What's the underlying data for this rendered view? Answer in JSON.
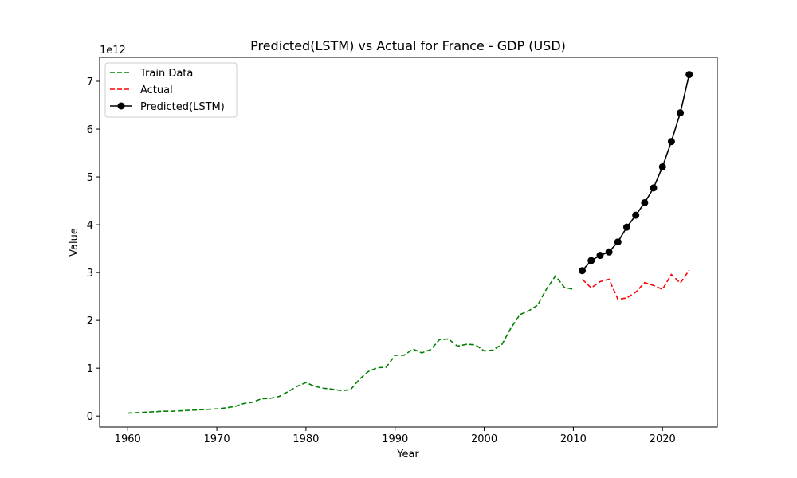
{
  "chart_data": {
    "type": "line",
    "title": "Predicted(LSTM) vs Actual for France - GDP (USD)",
    "xlabel": "Year",
    "ylabel": "Value",
    "y_offset_label": "1e12",
    "y_scale": 1000000000000.0,
    "xlim": [
      1956.85,
      2026.15
    ],
    "ylim": [
      -0.23,
      7.5
    ],
    "x_ticks": [
      1960,
      1970,
      1980,
      1990,
      2000,
      2010,
      2020
    ],
    "y_ticks": [
      0,
      1,
      2,
      3,
      4,
      5,
      6,
      7
    ],
    "legend_position": "top-left",
    "grid": false,
    "series": [
      {
        "name": "Train Data",
        "color": "#008000",
        "style": "dashed",
        "marker": "none",
        "x": [
          1960,
          1961,
          1962,
          1963,
          1964,
          1965,
          1966,
          1967,
          1968,
          1969,
          1970,
          1971,
          1972,
          1973,
          1974,
          1975,
          1976,
          1977,
          1978,
          1979,
          1980,
          1981,
          1982,
          1983,
          1984,
          1985,
          1986,
          1987,
          1988,
          1989,
          1990,
          1991,
          1992,
          1993,
          1994,
          1995,
          1996,
          1997,
          1998,
          1999,
          2000,
          2001,
          2002,
          2003,
          2004,
          2005,
          2006,
          2007,
          2008,
          2009,
          2010
        ],
        "y": [
          0.06,
          0.07,
          0.08,
          0.09,
          0.1,
          0.1,
          0.11,
          0.12,
          0.13,
          0.14,
          0.15,
          0.17,
          0.2,
          0.26,
          0.29,
          0.36,
          0.37,
          0.41,
          0.51,
          0.62,
          0.7,
          0.62,
          0.58,
          0.56,
          0.53,
          0.55,
          0.77,
          0.93,
          1.01,
          1.02,
          1.27,
          1.27,
          1.4,
          1.32,
          1.39,
          1.6,
          1.61,
          1.46,
          1.5,
          1.49,
          1.36,
          1.38,
          1.5,
          1.84,
          2.12,
          2.2,
          2.32,
          2.66,
          2.93,
          2.69,
          2.65
        ]
      },
      {
        "name": "Actual",
        "color": "#ff0000",
        "style": "dashed",
        "marker": "none",
        "x": [
          2011,
          2012,
          2013,
          2014,
          2015,
          2016,
          2017,
          2018,
          2019,
          2020,
          2021,
          2022,
          2023
        ],
        "y": [
          2.86,
          2.68,
          2.81,
          2.86,
          2.44,
          2.47,
          2.59,
          2.79,
          2.73,
          2.65,
          2.96,
          2.78,
          3.05
        ]
      },
      {
        "name": "Predicted(LSTM)",
        "color": "#000000",
        "style": "solid",
        "marker": "circle",
        "x": [
          2011,
          2012,
          2013,
          2014,
          2015,
          2016,
          2017,
          2018,
          2019,
          2020,
          2021,
          2022,
          2023
        ],
        "y": [
          3.04,
          3.25,
          3.36,
          3.43,
          3.64,
          3.95,
          4.2,
          4.46,
          4.77,
          5.21,
          5.74,
          6.34,
          7.14
        ]
      }
    ]
  }
}
